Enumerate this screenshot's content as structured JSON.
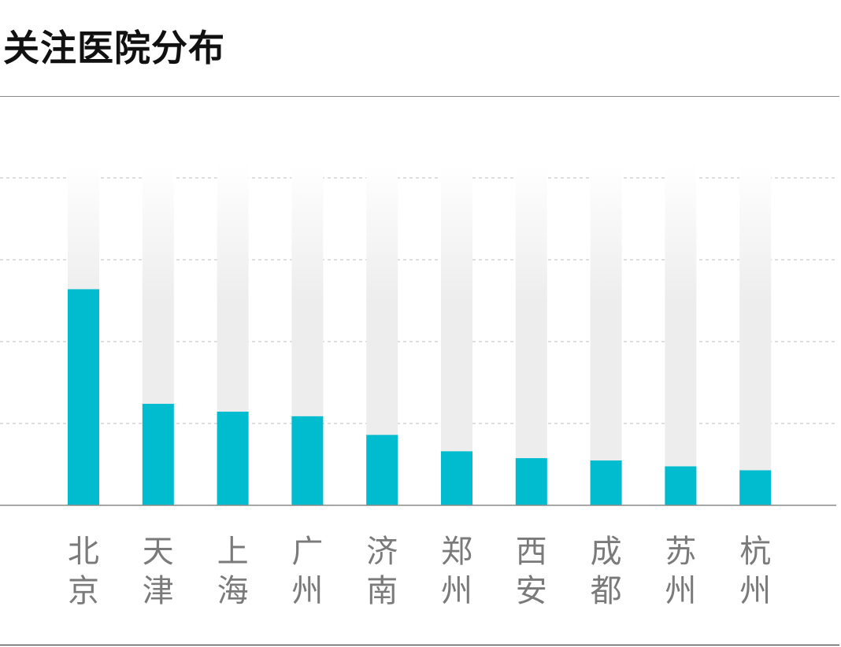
{
  "title": "关注医院分布",
  "colors": {
    "bar": "#00BCCE",
    "track_top": "#ffffff",
    "track_bottom": "#ededed",
    "grid": "#bdbdbd",
    "axis": "#8c8c8c",
    "label": "#7a7a7a"
  },
  "chart_data": {
    "type": "bar",
    "categories": [
      "北京",
      "天津",
      "上海",
      "广州",
      "济南",
      "郑州",
      "西安",
      "成都",
      "苏州",
      "杭州"
    ],
    "values": [
      66,
      31,
      28.6,
      27.2,
      21.5,
      16.5,
      14.4,
      13.7,
      11.9,
      10.7
    ],
    "ylim": [
      0,
      100
    ],
    "grid": true,
    "gridlines": [
      25,
      50,
      75,
      100
    ]
  }
}
